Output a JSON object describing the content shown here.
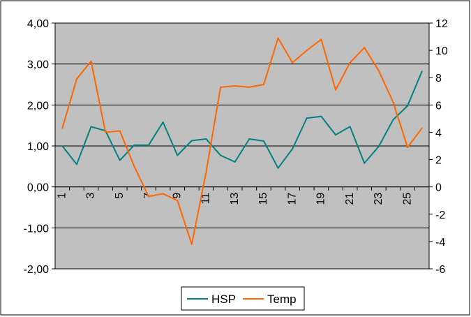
{
  "chart_data": {
    "type": "line",
    "title": "",
    "xlabel": "",
    "ylabel": "",
    "x": [
      1,
      2,
      3,
      4,
      5,
      6,
      7,
      8,
      9,
      10,
      11,
      12,
      13,
      14,
      15,
      16,
      17,
      18,
      19,
      20,
      21,
      22,
      23,
      24,
      25,
      26
    ],
    "x_tick_labels": [
      "1",
      "3",
      "5",
      "7",
      "9",
      "11",
      "13",
      "15",
      "17",
      "19",
      "21",
      "23",
      "25"
    ],
    "y_left_ticks": [
      "4,00",
      "3,00",
      "2,00",
      "1,00",
      "0,00",
      "-1,00",
      "-2,00"
    ],
    "y_right_ticks": [
      "12",
      "10",
      "8",
      "6",
      "4",
      "2",
      "0",
      "-2",
      "-4",
      "-6"
    ],
    "ylim_left": [
      -2,
      4
    ],
    "ylim_right": [
      -6,
      12
    ],
    "grid": "horizontal",
    "plot_background": "#c0c0c0",
    "legend_position": "bottom",
    "series": [
      {
        "name": "HSP",
        "axis": "left",
        "color": "#008080",
        "values": [
          1.0,
          0.55,
          1.47,
          1.37,
          0.65,
          1.02,
          1.02,
          1.58,
          0.77,
          1.13,
          1.17,
          0.77,
          0.61,
          1.17,
          1.12,
          0.46,
          0.93,
          1.68,
          1.72,
          1.27,
          1.47,
          0.58,
          0.99,
          1.64,
          1.98,
          2.82
        ]
      },
      {
        "name": "Temp",
        "axis": "right",
        "color": "#ff6600",
        "values": [
          4.3,
          7.9,
          9.2,
          4.0,
          4.1,
          1.5,
          -0.7,
          -0.5,
          -1.0,
          -4.2,
          1.1,
          7.3,
          7.4,
          7.3,
          7.5,
          10.9,
          9.1,
          10.0,
          10.8,
          7.1,
          9.1,
          10.2,
          8.5,
          6.2,
          2.9,
          4.3
        ]
      }
    ]
  }
}
